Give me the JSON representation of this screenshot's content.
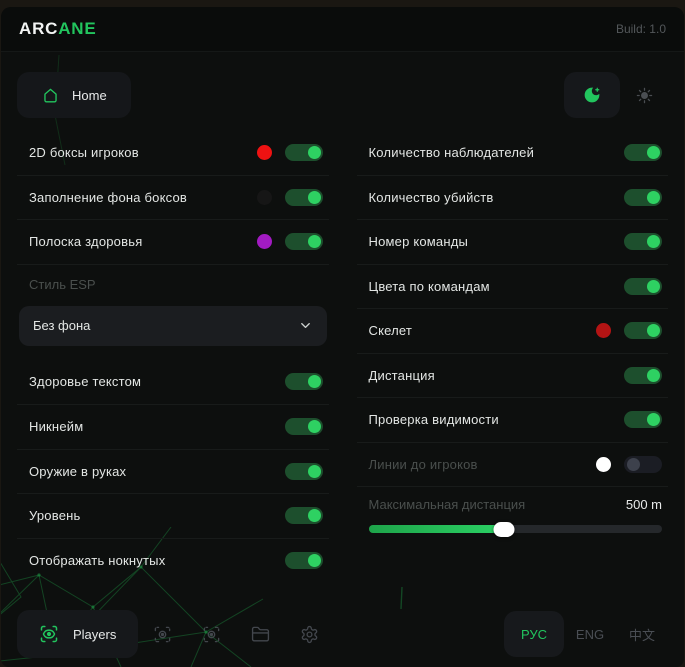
{
  "header": {
    "brand_prefix": "ARC",
    "brand_suffix": "ANE",
    "build_label": "Build: 1.0"
  },
  "nav": {
    "home_label": "Home"
  },
  "colors": {
    "accent": "#22c55e",
    "toggle_track_on": "#1d4f2d",
    "toggle_knob_on": "#2ed162",
    "background": "#0d0f0e"
  },
  "left": {
    "rows": [
      {
        "label": "2D боксы игроков",
        "on": true,
        "swatch": "#ee1212"
      },
      {
        "label": "Заполнение фона боксов",
        "on": true,
        "swatch": "#161616"
      },
      {
        "label": "Полоска здоровья",
        "on": true,
        "swatch": "#a21bc2"
      }
    ],
    "style_label": "Стиль ESP",
    "dropdown_value": "Без фона",
    "rows2": [
      {
        "label": "Здоровье текстом",
        "on": true
      },
      {
        "label": "Никнейм",
        "on": true
      },
      {
        "label": "Оружие в руках",
        "on": true
      },
      {
        "label": "Уровень",
        "on": true
      },
      {
        "label": "Отображать нокнутых",
        "on": true
      }
    ]
  },
  "right": {
    "rows": [
      {
        "label": "Количество наблюдателей",
        "on": true
      },
      {
        "label": "Количество убийств",
        "on": true
      },
      {
        "label": "Номер команды",
        "on": true
      },
      {
        "label": "Цвета по командам",
        "on": true
      },
      {
        "label": "Скелет",
        "on": true,
        "swatch": "#b31414"
      },
      {
        "label": "Дистанция",
        "on": true
      },
      {
        "label": "Проверка видимости",
        "on": true
      },
      {
        "label": "Линии до игроков",
        "on": false,
        "swatch": "#ffffff",
        "disabled": true
      }
    ],
    "slider": {
      "label": "Максимальная дистанция",
      "value": "500 m",
      "percent": "46"
    }
  },
  "footer": {
    "players_label": "Players",
    "languages": [
      {
        "label": "РУС",
        "active": true
      },
      {
        "label": "ENG",
        "active": false
      },
      {
        "label": "中文",
        "active": false
      }
    ]
  }
}
